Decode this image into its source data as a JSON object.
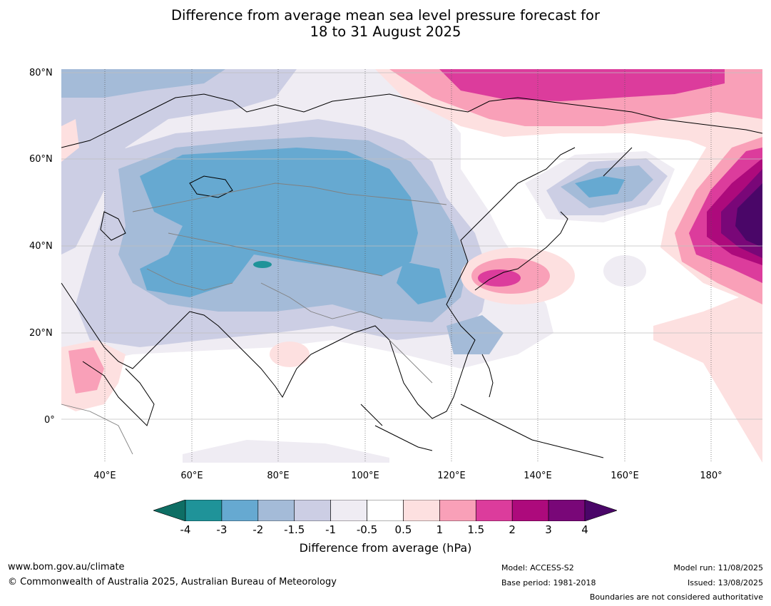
{
  "title_line1": "Difference from average mean sea level pressure forecast for",
  "title_line2": "18 to 31 August 2025",
  "lat_labels": [
    "80°N",
    "60°N",
    "40°N",
    "20°N",
    "0°"
  ],
  "lon_labels": [
    "40°E",
    "60°E",
    "80°E",
    "100°E",
    "120°E",
    "140°E",
    "160°E",
    "180°"
  ],
  "colorbar": {
    "ticks": [
      "-4",
      "-3",
      "-2",
      "-1.5",
      "-1",
      "-0.5",
      "0.5",
      "1",
      "1.5",
      "2",
      "3",
      "4"
    ],
    "colors": [
      "#0e6e64",
      "#1f9399",
      "#66a9d1",
      "#a4bbd8",
      "#cccee4",
      "#efecf3",
      "#ffffff",
      "#fde0e0",
      "#f9a0b8",
      "#dc3c9c",
      "#ad0a7c",
      "#790778",
      "#4a0668"
    ],
    "label": "Difference from average (hPa)"
  },
  "footer": {
    "url": "www.bom.gov.au/climate",
    "copyright": "© Commonwealth of Australia 2025, Australian Bureau of Meteorology",
    "model": "Model: ACCESS-S2",
    "base_period": "Base period: 1981-2018",
    "model_run": "Model run: 11/08/2025",
    "issued": "Issued: 13/08/2025",
    "boundaries": "Boundaries are not considered authoritative"
  }
}
